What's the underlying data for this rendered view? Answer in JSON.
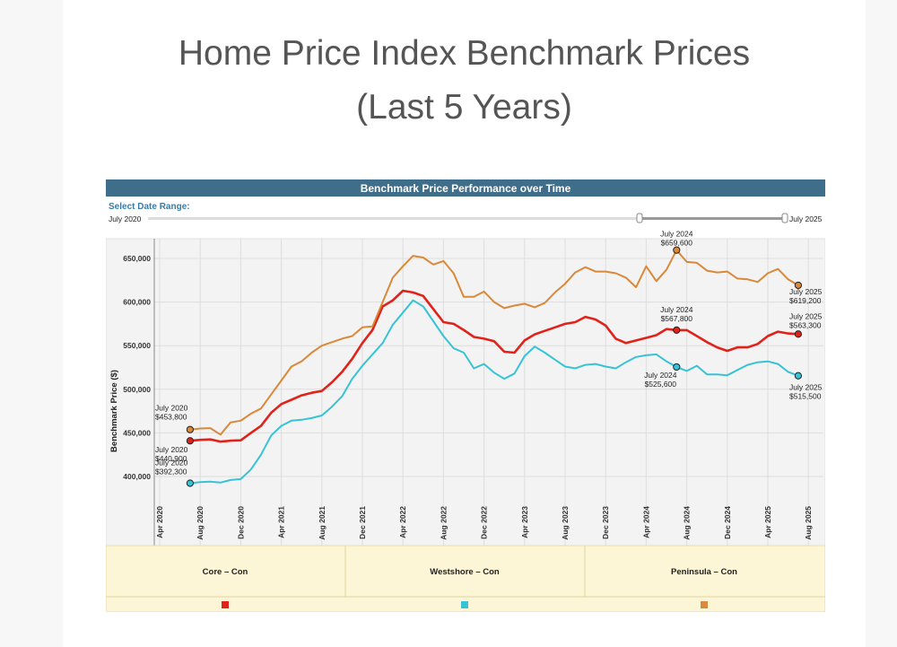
{
  "page": {
    "title_line1": "Home Price Index Benchmark Prices",
    "title_line2": "(Last 5 Years)"
  },
  "colors": {
    "header_bg": "#3f6e8a",
    "core": "#e0221a",
    "westshore": "#37c3d6",
    "peninsula": "#d8893a",
    "legend_bg": "#fdf6d6",
    "plot_bg": "#f3f3f3",
    "grid": "#dddddd",
    "link_blue": "#3a7ca5"
  },
  "chart_data": {
    "type": "line",
    "header": "Benchmark Price Performance over Time",
    "date_range": {
      "label": "Select Date Range:",
      "start": "July 2020",
      "end": "July 2025"
    },
    "ylabel": "Benchmark Price ($)",
    "ylim": [
      365000,
      670000
    ],
    "yticks": [
      400000,
      450000,
      500000,
      550000,
      600000,
      650000
    ],
    "ytick_labels": [
      "400,000",
      "450,000",
      "500,000",
      "550,000",
      "600,000",
      "650,000"
    ],
    "x_months": [
      "2020-07",
      "2020-08",
      "2020-09",
      "2020-10",
      "2020-11",
      "2020-12",
      "2021-01",
      "2021-02",
      "2021-03",
      "2021-04",
      "2021-05",
      "2021-06",
      "2021-07",
      "2021-08",
      "2021-09",
      "2021-10",
      "2021-11",
      "2021-12",
      "2022-01",
      "2022-02",
      "2022-03",
      "2022-04",
      "2022-05",
      "2022-06",
      "2022-07",
      "2022-08",
      "2022-09",
      "2022-10",
      "2022-11",
      "2022-12",
      "2023-01",
      "2023-02",
      "2023-03",
      "2023-04",
      "2023-05",
      "2023-06",
      "2023-07",
      "2023-08",
      "2023-09",
      "2023-10",
      "2023-11",
      "2023-12",
      "2024-01",
      "2024-02",
      "2024-03",
      "2024-04",
      "2024-05",
      "2024-06",
      "2024-07",
      "2024-08",
      "2024-09",
      "2024-10",
      "2024-11",
      "2024-12",
      "2025-01",
      "2025-02",
      "2025-03",
      "2025-04",
      "2025-05",
      "2025-06",
      "2025-07"
    ],
    "xticks": [
      {
        "label": "Apr 2020",
        "date": "2020-04"
      },
      {
        "label": "Aug 2020",
        "date": "2020-08"
      },
      {
        "label": "Dec 2020",
        "date": "2020-12"
      },
      {
        "label": "Apr 2021",
        "date": "2021-04"
      },
      {
        "label": "Aug 2021",
        "date": "2021-08"
      },
      {
        "label": "Dec 2021",
        "date": "2021-12"
      },
      {
        "label": "Apr 2022",
        "date": "2022-04"
      },
      {
        "label": "Aug 2022",
        "date": "2022-08"
      },
      {
        "label": "Dec 2022",
        "date": "2022-12"
      },
      {
        "label": "Apr 2023",
        "date": "2023-04"
      },
      {
        "label": "Aug 2023",
        "date": "2023-08"
      },
      {
        "label": "Dec 2023",
        "date": "2023-12"
      },
      {
        "label": "Apr 2024",
        "date": "2024-04"
      },
      {
        "label": "Aug 2024",
        "date": "2024-08"
      },
      {
        "label": "Dec 2024",
        "date": "2024-12"
      },
      {
        "label": "Apr 2025",
        "date": "2025-04"
      },
      {
        "label": "Aug 2025",
        "date": "2025-08"
      }
    ],
    "series": [
      {
        "name": "Core – Con",
        "color": "#e0221a",
        "values": [
          440900,
          442000,
          442500,
          440000,
          441000,
          441500,
          450000,
          458000,
          473000,
          483000,
          488000,
          493000,
          496000,
          498000,
          508000,
          520000,
          535000,
          553000,
          568000,
          595000,
          602000,
          613000,
          611000,
          607000,
          592000,
          577000,
          575000,
          568000,
          560000,
          558000,
          555000,
          543000,
          542000,
          556000,
          563000,
          567000,
          571000,
          575000,
          577000,
          583000,
          580000,
          573000,
          558000,
          553000,
          556000,
          559000,
          562000,
          569000,
          567800,
          567800,
          561000,
          554000,
          548000,
          544000,
          548000,
          548000,
          552000,
          561000,
          566000,
          564000,
          563300
        ]
      },
      {
        "name": "Westshore – Con",
        "color": "#37c3d6",
        "values": [
          392300,
          393500,
          394000,
          393000,
          396000,
          397000,
          408000,
          425000,
          447000,
          458000,
          464000,
          465000,
          467000,
          470000,
          480000,
          492000,
          512000,
          527000,
          540000,
          553000,
          574000,
          588000,
          602000,
          595000,
          578000,
          561000,
          547000,
          542000,
          524000,
          529000,
          519000,
          512000,
          518000,
          538000,
          549000,
          542000,
          534000,
          526000,
          524000,
          528000,
          529000,
          526000,
          524000,
          531000,
          537000,
          539000,
          540000,
          532000,
          525600,
          521000,
          527000,
          517000,
          517000,
          516000,
          522000,
          528000,
          531000,
          532000,
          529000,
          520000,
          515500
        ]
      },
      {
        "name": "Peninsula – Con",
        "color": "#d8893a",
        "values": [
          453800,
          455000,
          455500,
          448000,
          462000,
          464000,
          472000,
          478000,
          494000,
          510000,
          526000,
          532000,
          542000,
          550000,
          554000,
          558000,
          561000,
          571000,
          572000,
          600000,
          628000,
          641000,
          653000,
          651000,
          643000,
          647000,
          633000,
          606000,
          606000,
          612000,
          600000,
          593000,
          596000,
          598000,
          594000,
          599000,
          611000,
          621000,
          634000,
          640000,
          635000,
          635000,
          633000,
          628000,
          617000,
          641000,
          624000,
          637000,
          659600,
          646000,
          645000,
          636000,
          634000,
          635000,
          627000,
          626000,
          623000,
          633000,
          638000,
          626000,
          619200
        ]
      }
    ],
    "annotations": [
      {
        "series": 0,
        "date": "2020-07",
        "label_month": "July 2020",
        "label_value": "$440,900"
      },
      {
        "series": 1,
        "date": "2020-07",
        "label_month": "July 2020",
        "label_value": "$392,300"
      },
      {
        "series": 2,
        "date": "2020-07",
        "label_month": "July 2020",
        "label_value": "$453,800"
      },
      {
        "series": 0,
        "date": "2024-07",
        "label_month": "July 2024",
        "label_value": "$567,800"
      },
      {
        "series": 1,
        "date": "2024-07",
        "label_month": "July 2024",
        "label_value": "$525,600"
      },
      {
        "series": 2,
        "date": "2024-07",
        "label_month": "July 2024",
        "label_value": "$659,600"
      },
      {
        "series": 0,
        "date": "2025-07",
        "label_month": "July 2025",
        "label_value": "$563,300"
      },
      {
        "series": 1,
        "date": "2025-07",
        "label_month": "July 2025",
        "label_value": "$515,500"
      },
      {
        "series": 2,
        "date": "2025-07",
        "label_month": "July 2025",
        "label_value": "$619,200"
      }
    ],
    "legend": [
      "Core – Con",
      "Westshore – Con",
      "Peninsula – Con"
    ],
    "grid": true
  }
}
